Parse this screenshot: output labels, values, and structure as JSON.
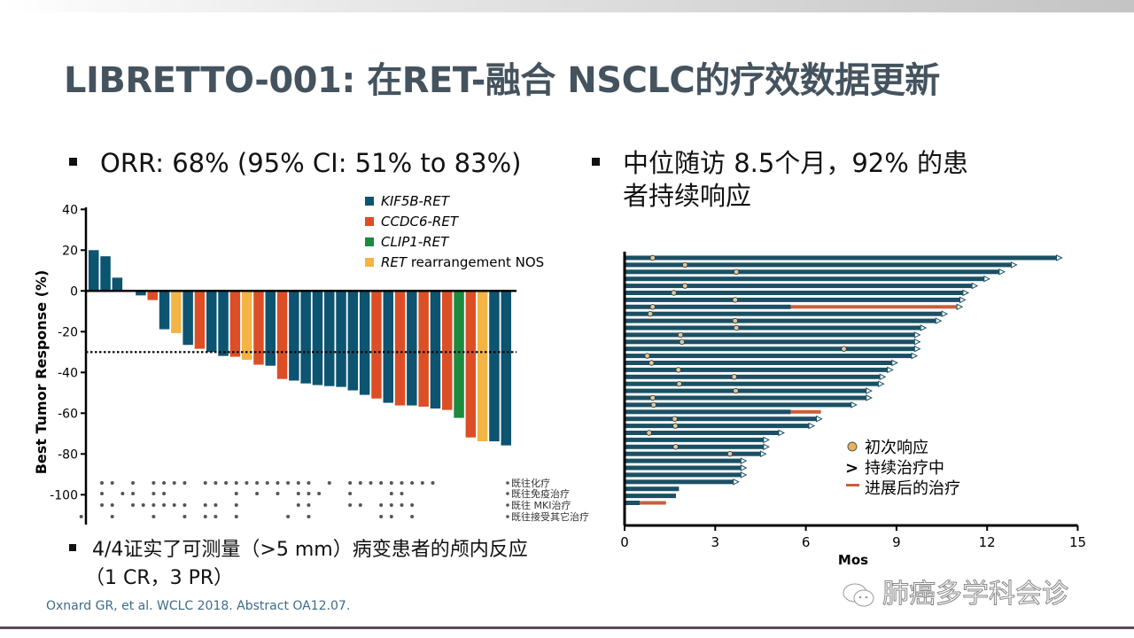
{
  "title": "LIBRETTO-001: 在RET-融合 NSCLC的疗效数据更新",
  "bullets": {
    "orr": "ORR: 68% (95% CI: 51% to 83%)",
    "followup_line1": "中位随访 8.5个月，92% 的患",
    "followup_line2": "者持续响应",
    "intracranial_line1": "4/4证实了可测量（>5 mm）病变患者的颅内反应",
    "intracranial_line2": "（1 CR，3 PR）"
  },
  "citation": "Oxnard GR, et al. WCLC 2018. Abstract OA12.07.",
  "watermark": "肺癌多学科会诊",
  "colors": {
    "KIF5B": "#0d5470",
    "CCDC6": "#dc4f26",
    "CLIP1": "#1c8a3f",
    "NOS": "#f3b446",
    "swim_bar": "#1b5064",
    "progression": "#c95f3a",
    "response": "#e6b35c"
  },
  "chart_data": [
    {
      "type": "bar",
      "title": "",
      "ylabel": "Best Tumor Response (%)",
      "xlabel": "",
      "ylim": [
        -110,
        40
      ],
      "yticks": [
        "40",
        "20",
        "0",
        "-20",
        "-40",
        "-60",
        "-80",
        "-100"
      ],
      "ytick_values": [
        40,
        20,
        0,
        -20,
        -40,
        -60,
        -80,
        -100
      ],
      "threshold": -30,
      "legend": [
        {
          "key": "KIF5B",
          "label": "KIF5B-RET",
          "italic_part": "KIF5B-RET",
          "rest": ""
        },
        {
          "key": "CCDC6",
          "label": "CCDC6-RET",
          "italic_part": "CCDC6-RET",
          "rest": ""
        },
        {
          "key": "CLIP1",
          "label": "CLIP1-RET",
          "italic_part": "CLIP1-RET",
          "rest": ""
        },
        {
          "key": "NOS",
          "label": "RET rearrangement NOS",
          "italic_part": "RET",
          "rest": " rearrangement  NOS"
        }
      ],
      "legend_position": "top-right",
      "values": [
        20,
        17,
        6.5,
        0,
        -2.2,
        -4.5,
        -18.8,
        -20.7,
        -26.5,
        -28.4,
        -30,
        -31.9,
        -32.3,
        -33.8,
        -36.2,
        -36.7,
        -43.2,
        -44,
        -45.4,
        -46.2,
        -46.7,
        -47.1,
        -48.8,
        -51,
        -52.8,
        -54.9,
        -56.2,
        -56.2,
        -56.8,
        -57.7,
        -58.4,
        -62.3,
        -71.9,
        -73.8,
        -73.8,
        -75.8
      ],
      "fusion": [
        "KIF5B",
        "KIF5B",
        "KIF5B",
        "KIF5B",
        "KIF5B",
        "CCDC6",
        "KIF5B",
        "NOS",
        "KIF5B",
        "CCDC6",
        "KIF5B",
        "KIF5B",
        "CCDC6",
        "NOS",
        "CCDC6",
        "KIF5B",
        "CCDC6",
        "KIF5B",
        "KIF5B",
        "KIF5B",
        "KIF5B",
        "KIF5B",
        "KIF5B",
        "KIF5B",
        "CCDC6",
        "KIF5B",
        "CCDC6",
        "KIF5B",
        "CCDC6",
        "KIF5B",
        "CCDC6",
        "CLIP1",
        "CCDC6",
        "NOS",
        "KIF5B",
        "KIF5B"
      ],
      "prior_therapy_rows": [
        {
          "label": "既往化疗",
          "columns": [
            2,
            3,
            5,
            7,
            8,
            9,
            10,
            12,
            13,
            14,
            15,
            16,
            17,
            18,
            19,
            20,
            21,
            22,
            24,
            26,
            27,
            28,
            29,
            30,
            31,
            32,
            33,
            34
          ]
        },
        {
          "label": "既往免疫治疗",
          "columns": [
            2,
            4,
            5,
            7,
            8,
            15,
            17,
            19,
            21,
            22,
            23,
            26,
            30,
            31
          ]
        },
        {
          "label": "既往 MKI治疗",
          "columns": [
            2,
            3,
            5,
            6,
            7,
            8,
            9,
            10,
            12,
            13,
            15,
            21,
            22,
            26,
            27,
            29,
            30,
            31,
            32
          ]
        },
        {
          "label": "既往接受其它治疗",
          "columns": [
            0,
            3,
            7,
            10,
            12,
            13,
            15,
            20,
            22,
            29,
            30,
            32
          ]
        }
      ]
    },
    {
      "type": "swimmer",
      "xlabel": "Mos",
      "xlim": [
        0,
        15
      ],
      "xticks": [
        "0",
        "3",
        "6",
        "9",
        "12",
        "15"
      ],
      "xtick_values": [
        0,
        3,
        6,
        9,
        12,
        15
      ],
      "legend": {
        "response": "初次响应",
        "ongoing_symbol": ">",
        "ongoing": "持续治疗中",
        "progression": "进展后的治疗"
      },
      "legend_position": "bottom-right",
      "patients": [
        {
          "end": 14.3,
          "response": 0.93,
          "ongoing": true
        },
        {
          "end": 12.8,
          "response": 2.0,
          "ongoing": true
        },
        {
          "end": 12.4,
          "response": 3.7,
          "ongoing": true
        },
        {
          "end": 11.9,
          "response": null,
          "ongoing": true
        },
        {
          "end": 11.5,
          "response": 2.0,
          "ongoing": true
        },
        {
          "end": 11.2,
          "response": 1.63,
          "ongoing": true
        },
        {
          "end": 11.1,
          "response": 3.66,
          "ongoing": true
        },
        {
          "end": 11.0,
          "response": 0.93,
          "ongoing": true,
          "progression_start": 5.5
        },
        {
          "end": 10.5,
          "response": 0.85,
          "ongoing": true
        },
        {
          "end": 10.3,
          "response": 3.66,
          "ongoing": true
        },
        {
          "end": 9.8,
          "response": 3.7,
          "ongoing": true
        },
        {
          "end": 9.6,
          "response": 1.85,
          "ongoing": true
        },
        {
          "end": 9.6,
          "response": 1.9,
          "ongoing": true
        },
        {
          "end": 9.6,
          "response": 7.26,
          "ongoing": true
        },
        {
          "end": 9.5,
          "response": 0.75,
          "ongoing": true
        },
        {
          "end": 8.85,
          "response": 0.89,
          "ongoing": true
        },
        {
          "end": 8.7,
          "response": 1.78,
          "ongoing": true
        },
        {
          "end": 8.45,
          "response": 3.63,
          "ongoing": true
        },
        {
          "end": 8.4,
          "response": 1.81,
          "ongoing": true
        },
        {
          "end": 8.0,
          "response": 3.68,
          "ongoing": true
        },
        {
          "end": 8.0,
          "response": 0.93,
          "ongoing": true
        },
        {
          "end": 7.5,
          "response": 0.96,
          "ongoing": true
        },
        {
          "end": 6.5,
          "response": null,
          "ongoing": false,
          "progression_start": 5.5
        },
        {
          "end": 6.35,
          "response": 1.66,
          "ongoing": true
        },
        {
          "end": 6.1,
          "response": 1.68,
          "ongoing": true
        },
        {
          "end": 5.1,
          "response": 0.81,
          "ongoing": true
        },
        {
          "end": 4.6,
          "response": null,
          "ongoing": true
        },
        {
          "end": 4.6,
          "response": 1.69,
          "ongoing": true
        },
        {
          "end": 4.5,
          "response": 3.49,
          "ongoing": true
        },
        {
          "end": 3.85,
          "response": null,
          "ongoing": true
        },
        {
          "end": 3.85,
          "response": null,
          "ongoing": true
        },
        {
          "end": 3.85,
          "response": null,
          "ongoing": true
        },
        {
          "end": 3.6,
          "response": null,
          "ongoing": true
        },
        {
          "end": 1.8,
          "response": null,
          "ongoing": false
        },
        {
          "end": 1.7,
          "response": null,
          "ongoing": false
        },
        {
          "end": 1.37,
          "response": null,
          "ongoing": false,
          "progression_start": 0.5
        }
      ]
    }
  ]
}
